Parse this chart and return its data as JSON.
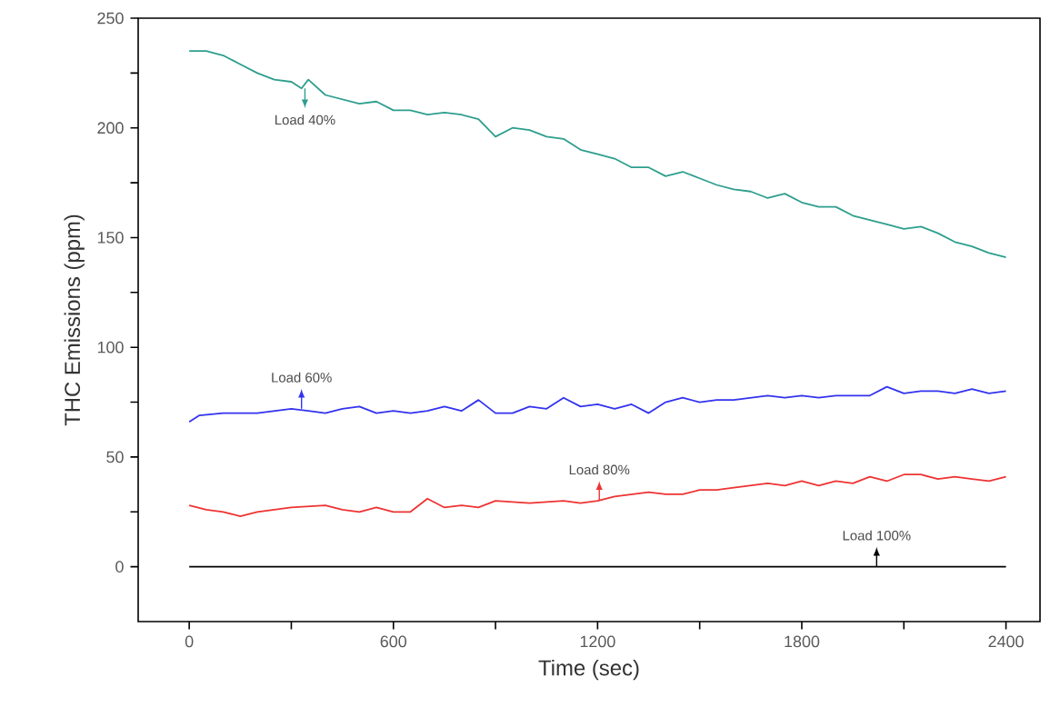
{
  "chart_data": {
    "type": "line",
    "xlabel": "Time (sec)",
    "ylabel": "THC Emissions (ppm)",
    "xlim": [
      -150,
      2500
    ],
    "ylim": [
      -25,
      250
    ],
    "xticks": [
      0,
      {
        "value": 300,
        "label": null
      },
      600,
      {
        "value": 900,
        "label": null
      },
      1200,
      {
        "value": 1500,
        "label": null
      },
      1800,
      {
        "value": 2100,
        "label": null
      },
      2400
    ],
    "yticks": [
      0,
      {
        "value": 25,
        "label": null
      },
      50,
      {
        "value": 75,
        "label": null
      },
      100,
      {
        "value": 125,
        "label": null
      },
      150,
      {
        "value": 175,
        "label": null
      },
      200,
      {
        "value": 225,
        "label": null
      },
      250
    ],
    "grid": false,
    "marker": "none",
    "line_style": "solid",
    "annotations": [
      {
        "text": "Load  40%",
        "x": 340,
        "y": 218
      },
      {
        "text": "Load  60%",
        "x": 330,
        "y": 72
      },
      {
        "text": "Load  80%",
        "x": 1205,
        "y": 30
      },
      {
        "text": "Load 100%",
        "x": 2020,
        "y": 0
      }
    ],
    "series": [
      {
        "color": "#2e9e8e",
        "x": [
          0,
          50,
          100,
          150,
          200,
          250,
          300,
          330,
          350,
          400,
          450,
          500,
          550,
          600,
          650,
          700,
          750,
          800,
          850,
          900,
          950,
          1000,
          1050,
          1100,
          1150,
          1200,
          1250,
          1300,
          1350,
          1400,
          1450,
          1500,
          1550,
          1600,
          1650,
          1700,
          1750,
          1800,
          1850,
          1900,
          1950,
          2000,
          2050,
          2100,
          2150,
          2200,
          2250,
          2300,
          2350,
          2400
        ],
        "values": [
          235,
          235,
          233,
          229,
          225,
          222,
          221,
          218,
          222,
          215,
          213,
          211,
          212,
          208,
          208,
          206,
          207,
          206,
          204,
          196,
          200,
          199,
          196,
          195,
          190,
          188,
          186,
          182,
          182,
          178,
          180,
          177,
          174,
          172,
          171,
          168,
          170,
          166,
          164,
          164,
          160,
          158,
          156,
          154,
          155,
          152,
          148,
          146,
          143,
          141
        ]
      },
      {
        "color": "#3333ee",
        "x": [
          0,
          30,
          100,
          200,
          300,
          350,
          400,
          450,
          500,
          550,
          600,
          650,
          700,
          750,
          800,
          850,
          900,
          950,
          1000,
          1050,
          1100,
          1150,
          1200,
          1250,
          1300,
          1350,
          1400,
          1450,
          1500,
          1550,
          1600,
          1650,
          1700,
          1750,
          1800,
          1850,
          1900,
          1950,
          2000,
          2050,
          2100,
          2150,
          2200,
          2250,
          2300,
          2350,
          2400
        ],
        "values": [
          66,
          69,
          70,
          70,
          72,
          71,
          70,
          72,
          73,
          70,
          71,
          70,
          71,
          73,
          71,
          76,
          70,
          70,
          73,
          72,
          77,
          73,
          74,
          72,
          74,
          70,
          75,
          77,
          75,
          76,
          76,
          77,
          78,
          77,
          78,
          77,
          78,
          78,
          78,
          82,
          79,
          80,
          80,
          79,
          81,
          79,
          80
        ]
      },
      {
        "color": "#ee3333",
        "x": [
          0,
          50,
          100,
          150,
          200,
          300,
          400,
          450,
          500,
          550,
          600,
          650,
          700,
          750,
          800,
          850,
          900,
          1000,
          1100,
          1150,
          1200,
          1250,
          1300,
          1350,
          1400,
          1450,
          1500,
          1550,
          1600,
          1650,
          1700,
          1750,
          1800,
          1850,
          1900,
          1950,
          2000,
          2050,
          2100,
          2150,
          2200,
          2250,
          2300,
          2350,
          2400
        ],
        "values": [
          28,
          26,
          25,
          23,
          25,
          27,
          28,
          26,
          25,
          27,
          25,
          25,
          31,
          27,
          28,
          27,
          30,
          29,
          30,
          29,
          30,
          32,
          33,
          34,
          33,
          33,
          35,
          35,
          36,
          37,
          38,
          37,
          39,
          37,
          39,
          38,
          41,
          39,
          42,
          42,
          40,
          41,
          40,
          39,
          41
        ]
      },
      {
        "color": "#000000",
        "x": [
          0,
          2400
        ],
        "values": [
          0,
          0
        ]
      }
    ]
  }
}
